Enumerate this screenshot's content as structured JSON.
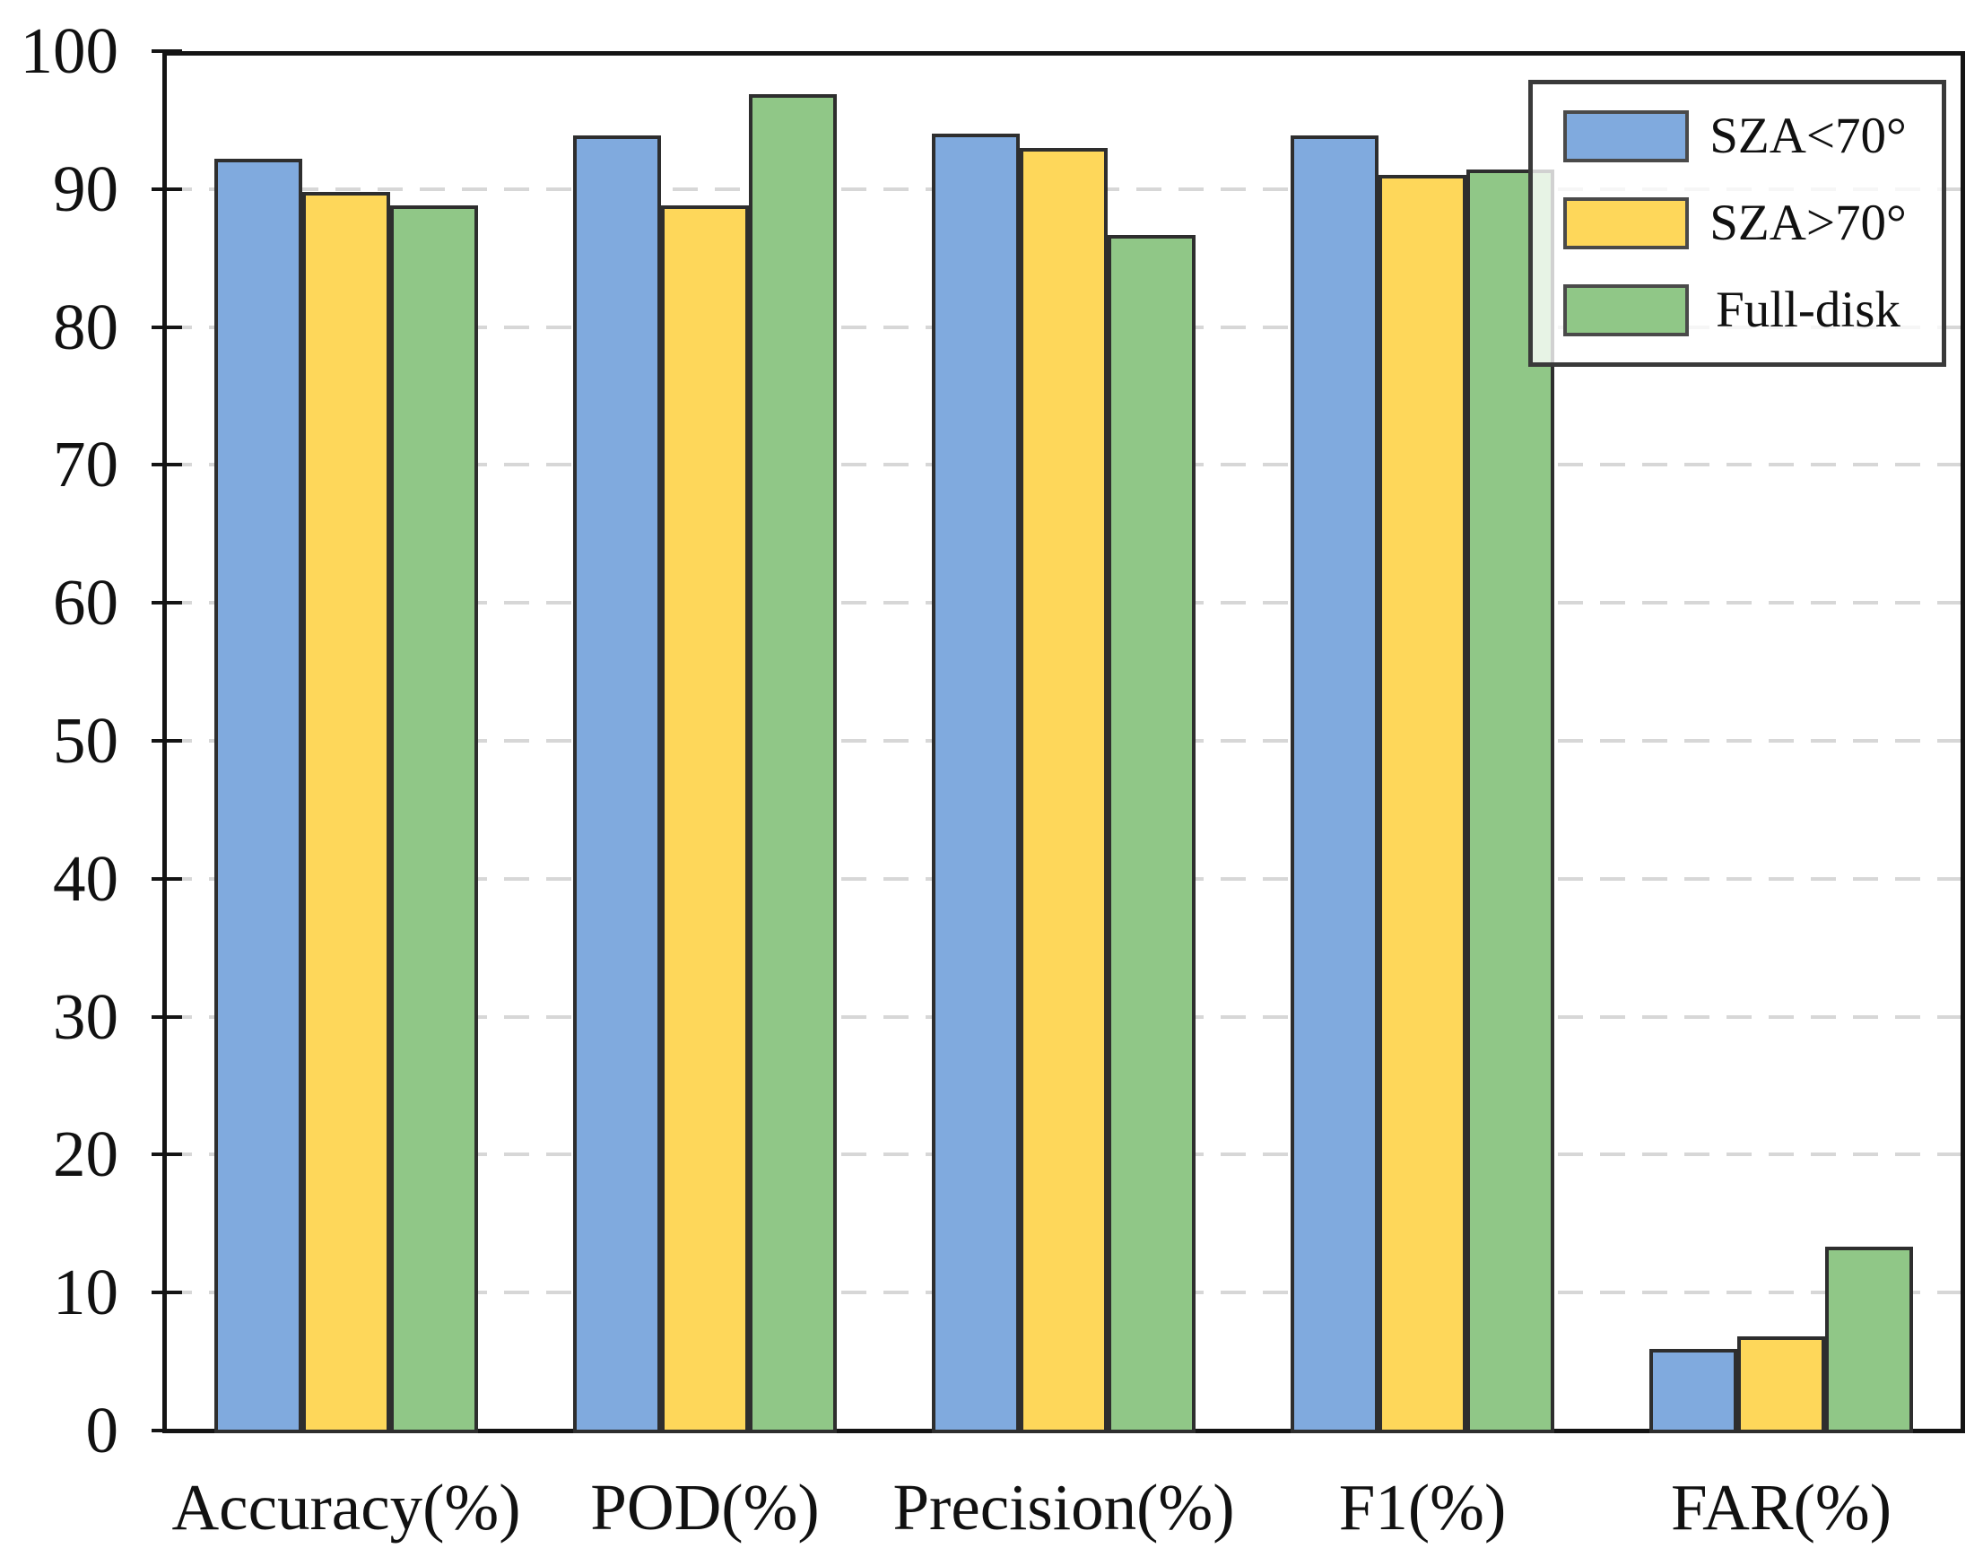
{
  "chart_data": {
    "type": "bar",
    "title": "",
    "xlabel": "",
    "ylabel": "",
    "categories": [
      "Accuracy(%)",
      "POD(%)",
      "Precision(%)",
      "F1(%)",
      "FAR(%)"
    ],
    "series": [
      {
        "name": "SZA<70°",
        "color": "#80AADE",
        "values": [
          92.2,
          93.9,
          94.0,
          93.9,
          5.9
        ]
      },
      {
        "name": "SZA>70°",
        "color": "#FED75A",
        "values": [
          89.8,
          88.8,
          93.0,
          91.0,
          6.8
        ]
      },
      {
        "name": "Full-disk",
        "color": "#90C787",
        "values": [
          88.8,
          96.9,
          86.7,
          91.4,
          13.3
        ]
      }
    ],
    "ylim": [
      0,
      100
    ],
    "yticks": [
      0,
      10,
      20,
      30,
      40,
      50,
      60,
      70,
      80,
      90,
      100
    ],
    "grid": "horizontal-dashed",
    "gridline_color": "#d7d7d7",
    "bar_edge_color": "#2e2e2e",
    "axis_color": "#141414",
    "legend_position": "top-right",
    "legend_border_color": "#3a3a3a"
  }
}
